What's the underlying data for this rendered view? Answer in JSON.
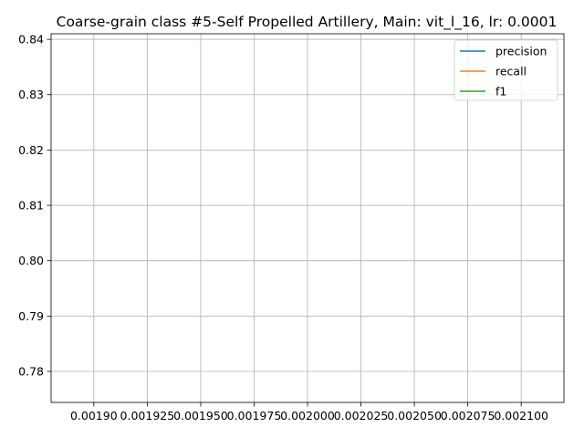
{
  "chart_data": {
    "type": "line",
    "title": "Coarse-grain class #5-Self Propelled Artillery, Main: vit_l_16, lr: 0.0001",
    "xlabel": "",
    "ylabel": "",
    "x": [],
    "series": [
      {
        "name": "precision",
        "values": [],
        "color": "#1f77b4"
      },
      {
        "name": "recall",
        "values": [],
        "color": "#ff7f0e"
      },
      {
        "name": "f1",
        "values": [],
        "color": "#2ca02c"
      }
    ],
    "xlim": [
      0.00188,
      0.00212
    ],
    "ylim": [
      0.7744,
      0.841
    ],
    "x_ticks": [
      {
        "value": 0.0019,
        "label": "0.00190"
      },
      {
        "value": 0.001925,
        "label": "0.001925"
      },
      {
        "value": 0.00195,
        "label": "0.001950"
      },
      {
        "value": 0.001975,
        "label": "0.001975"
      },
      {
        "value": 0.002,
        "label": "0.002000"
      },
      {
        "value": 0.002025,
        "label": "0.002025"
      },
      {
        "value": 0.00205,
        "label": "0.002050"
      },
      {
        "value": 0.002075,
        "label": "0.002075"
      },
      {
        "value": 0.0021,
        "label": "0.002100"
      }
    ],
    "y_ticks": [
      {
        "value": 0.78,
        "label": "0.78"
      },
      {
        "value": 0.79,
        "label": "0.79"
      },
      {
        "value": 0.8,
        "label": "0.80"
      },
      {
        "value": 0.81,
        "label": "0.81"
      },
      {
        "value": 0.82,
        "label": "0.82"
      },
      {
        "value": 0.83,
        "label": "0.83"
      },
      {
        "value": 0.84,
        "label": "0.84"
      }
    ],
    "grid": true,
    "legend_position": "top-right"
  }
}
